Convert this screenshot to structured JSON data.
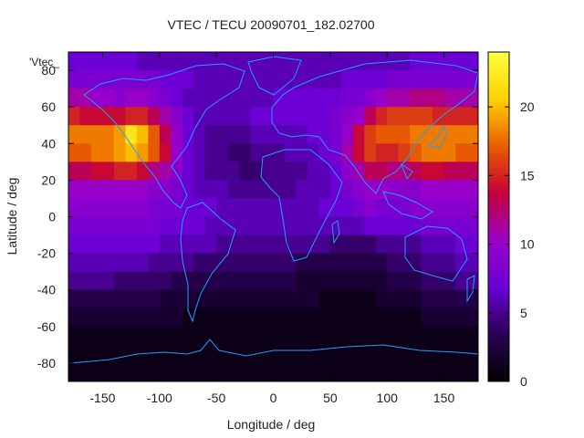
{
  "chart_data": {
    "type": "heatmap",
    "title": "VTEC / TECU 20090701_182.02700",
    "xlabel": "Longitude / deg",
    "ylabel": "Latitude / deg",
    "overlay_label": "'Vtec_",
    "xlim": [
      -180,
      180
    ],
    "ylim": [
      -90,
      90
    ],
    "xticks": [
      -150,
      -100,
      -50,
      0,
      50,
      100,
      150
    ],
    "yticks": [
      -80,
      -60,
      -40,
      -20,
      0,
      20,
      40,
      60,
      80
    ],
    "colorbar": {
      "range": [
        0,
        24
      ],
      "ticks": [
        0,
        5,
        10,
        15,
        20
      ],
      "palette": [
        "#000000",
        "#2a0055",
        "#6a00d6",
        "#9b00c8",
        "#c4003a",
        "#e85d00",
        "#ffd000",
        "#ffff44"
      ]
    },
    "coastline_color": "#1ea0ff",
    "grid": false,
    "legend": "none",
    "field": {
      "lon_step": 10,
      "lat_step": 10,
      "lon_start": -180,
      "lat_start": 90,
      "rows": [
        [
          7,
          7,
          7,
          7,
          7,
          7,
          6,
          6,
          6,
          6,
          6,
          6,
          6,
          6,
          6,
          6,
          6,
          6,
          6,
          6,
          6,
          6,
          6,
          6,
          6,
          6,
          6,
          6,
          6,
          6,
          7,
          7,
          7,
          7,
          7,
          7
        ],
        [
          8,
          8,
          8,
          8,
          8,
          8,
          8,
          8,
          7,
          7,
          7,
          6,
          6,
          6,
          6,
          6,
          6,
          6,
          6,
          6,
          6,
          6,
          6,
          6,
          7,
          7,
          7,
          7,
          8,
          8,
          8,
          8,
          8,
          8,
          8,
          8
        ],
        [
          11,
          11,
          10,
          10,
          9,
          10,
          10,
          9,
          8,
          7,
          6,
          6,
          6,
          6,
          6,
          6,
          6,
          6,
          7,
          7,
          7,
          7,
          7,
          7,
          8,
          8,
          9,
          10,
          11,
          11,
          12,
          12,
          12,
          11,
          11,
          11
        ],
        [
          15,
          14,
          14,
          14,
          14,
          15,
          15,
          13,
          11,
          9,
          7,
          6,
          6,
          6,
          6,
          6,
          7,
          7,
          7,
          7,
          7,
          7,
          7,
          8,
          9,
          10,
          13,
          15,
          16,
          16,
          16,
          16,
          15,
          15,
          15,
          15
        ],
        [
          18,
          18,
          18,
          18,
          19,
          22,
          20,
          17,
          13,
          10,
          7,
          6,
          5,
          5,
          5,
          5,
          6,
          6,
          6,
          6,
          6,
          7,
          7,
          8,
          10,
          14,
          16,
          17,
          17,
          17,
          18,
          18,
          18,
          18,
          18,
          18
        ],
        [
          17,
          17,
          18,
          18,
          19,
          20,
          19,
          17,
          14,
          10,
          7,
          6,
          5,
          5,
          4,
          4,
          5,
          5,
          5,
          6,
          6,
          6,
          7,
          8,
          11,
          14,
          16,
          15,
          15,
          16,
          17,
          18,
          18,
          18,
          17,
          17
        ],
        [
          13,
          13,
          14,
          14,
          15,
          15,
          14,
          12,
          11,
          9,
          7,
          6,
          5,
          5,
          5,
          4,
          4,
          5,
          5,
          5,
          5,
          6,
          6,
          7,
          9,
          11,
          13,
          13,
          12,
          12,
          13,
          14,
          14,
          13,
          13,
          13
        ],
        [
          10,
          10,
          10,
          10,
          10,
          10,
          10,
          9,
          9,
          8,
          7,
          6,
          6,
          6,
          5,
          5,
          5,
          5,
          5,
          5,
          6,
          6,
          6,
          7,
          8,
          9,
          10,
          10,
          9,
          9,
          9,
          10,
          10,
          10,
          10,
          10
        ],
        [
          9,
          9,
          9,
          9,
          9,
          9,
          9,
          8,
          8,
          8,
          7,
          7,
          7,
          6,
          6,
          6,
          6,
          6,
          6,
          6,
          6,
          6,
          7,
          7,
          7,
          8,
          9,
          8,
          8,
          8,
          9,
          9,
          9,
          9,
          9,
          9
        ],
        [
          8,
          8,
          8,
          8,
          8,
          8,
          8,
          8,
          7,
          7,
          7,
          7,
          6,
          6,
          6,
          6,
          6,
          6,
          6,
          6,
          6,
          6,
          6,
          6,
          6,
          6,
          7,
          7,
          7,
          7,
          7,
          8,
          8,
          8,
          8,
          8
        ],
        [
          7,
          7,
          7,
          7,
          7,
          7,
          7,
          7,
          6,
          6,
          6,
          6,
          6,
          5,
          5,
          5,
          5,
          5,
          5,
          5,
          5,
          5,
          5,
          4,
          4,
          4,
          4,
          5,
          5,
          5,
          5,
          6,
          6,
          6,
          7,
          7
        ],
        [
          6,
          6,
          6,
          6,
          6,
          6,
          6,
          5,
          5,
          5,
          5,
          4,
          4,
          4,
          4,
          4,
          4,
          4,
          4,
          4,
          3,
          3,
          3,
          3,
          3,
          3,
          3,
          3,
          4,
          4,
          4,
          5,
          5,
          5,
          6,
          6
        ],
        [
          5,
          5,
          5,
          5,
          4,
          4,
          4,
          4,
          4,
          3,
          3,
          3,
          3,
          3,
          3,
          3,
          3,
          3,
          3,
          3,
          2,
          2,
          2,
          2,
          2,
          2,
          2,
          2,
          3,
          3,
          3,
          4,
          4,
          4,
          5,
          5
        ],
        [
          3,
          3,
          3,
          3,
          3,
          3,
          3,
          3,
          2,
          2,
          2,
          2,
          2,
          2,
          2,
          2,
          2,
          2,
          2,
          2,
          2,
          2,
          1,
          1,
          1,
          1,
          1,
          2,
          2,
          2,
          2,
          3,
          3,
          3,
          3,
          3
        ],
        [
          2,
          2,
          2,
          2,
          2,
          2,
          2,
          2,
          2,
          2,
          1,
          1,
          1,
          1,
          1,
          1,
          1,
          1,
          1,
          1,
          1,
          1,
          1,
          1,
          1,
          1,
          1,
          1,
          1,
          1,
          1,
          2,
          2,
          2,
          2,
          2
        ],
        [
          1,
          1,
          1,
          1,
          1,
          1,
          1,
          1,
          1,
          1,
          1,
          1,
          1,
          1,
          1,
          1,
          1,
          1,
          1,
          1,
          1,
          1,
          1,
          1,
          1,
          1,
          1,
          1,
          1,
          1,
          1,
          1,
          1,
          1,
          1,
          1
        ],
        [
          1,
          1,
          1,
          1,
          1,
          1,
          1,
          1,
          1,
          1,
          1,
          1,
          1,
          1,
          1,
          1,
          1,
          1,
          1,
          1,
          1,
          1,
          1,
          1,
          1,
          1,
          1,
          1,
          1,
          1,
          1,
          1,
          1,
          1,
          1,
          1
        ],
        [
          1,
          1,
          1,
          1,
          1,
          1,
          1,
          1,
          1,
          1,
          1,
          1,
          1,
          1,
          1,
          1,
          1,
          1,
          1,
          1,
          1,
          1,
          1,
          1,
          1,
          1,
          1,
          1,
          1,
          1,
          1,
          1,
          1,
          1,
          1,
          1
        ]
      ]
    }
  }
}
